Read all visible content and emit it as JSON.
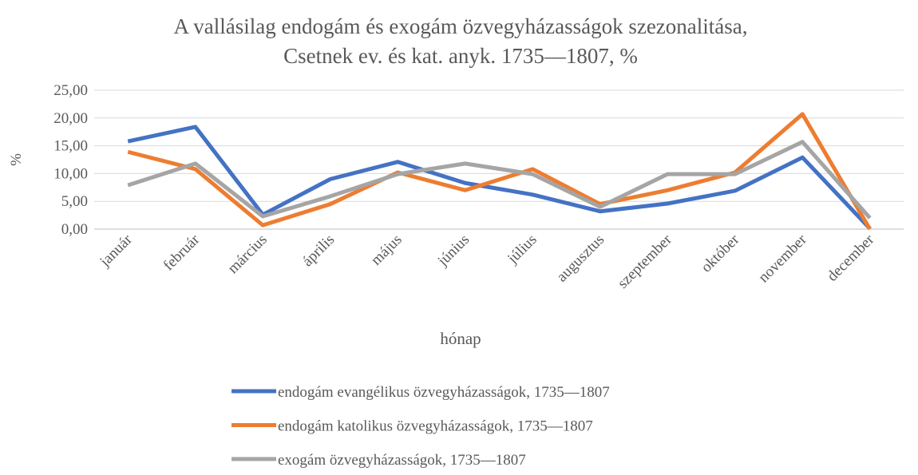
{
  "chart_data": {
    "type": "line",
    "title": "A vallásilag endogám és exogám özvegyházasságok szezonalitása,",
    "subtitle": "Csetnek ev. és kat. anyk. 1735—1807, %",
    "x_label": "hónap",
    "y_label": "%",
    "categories": [
      "január",
      "február",
      "március",
      "április",
      "május",
      "június",
      "július",
      "augusztus",
      "szeptember",
      "október",
      "november",
      "december"
    ],
    "series": [
      {
        "name": "endogám evangélikus özvegyházasságok, 1735—1807",
        "color": "#4472c4",
        "values": [
          15.8,
          18.4,
          2.6,
          9.0,
          12.1,
          8.3,
          6.2,
          3.2,
          4.6,
          6.9,
          12.9,
          0.1
        ]
      },
      {
        "name": "endogám katolikus özvegyházasságok, 1735—1807",
        "color": "#ed7d31",
        "values": [
          13.9,
          10.8,
          0.7,
          4.5,
          10.2,
          7.0,
          10.8,
          4.5,
          7.0,
          10.2,
          20.7,
          0.0
        ]
      },
      {
        "name": "exogám özvegyházasságok, 1735—1807",
        "color": "#a5a5a5",
        "values": [
          7.9,
          11.8,
          2.3,
          5.9,
          9.9,
          11.8,
          9.9,
          4.0,
          9.9,
          9.9,
          15.7,
          2.0
        ]
      }
    ],
    "ylim": [
      0,
      25
    ],
    "yticks": [
      {
        "value": 0,
        "label": "0,00"
      },
      {
        "value": 5,
        "label": "5,00"
      },
      {
        "value": 10,
        "label": "10,00"
      },
      {
        "value": 15,
        "label": "15,00"
      },
      {
        "value": 20,
        "label": "20,00"
      },
      {
        "value": 25,
        "label": "25,00"
      }
    ],
    "grid": true,
    "legend": "bottom"
  }
}
